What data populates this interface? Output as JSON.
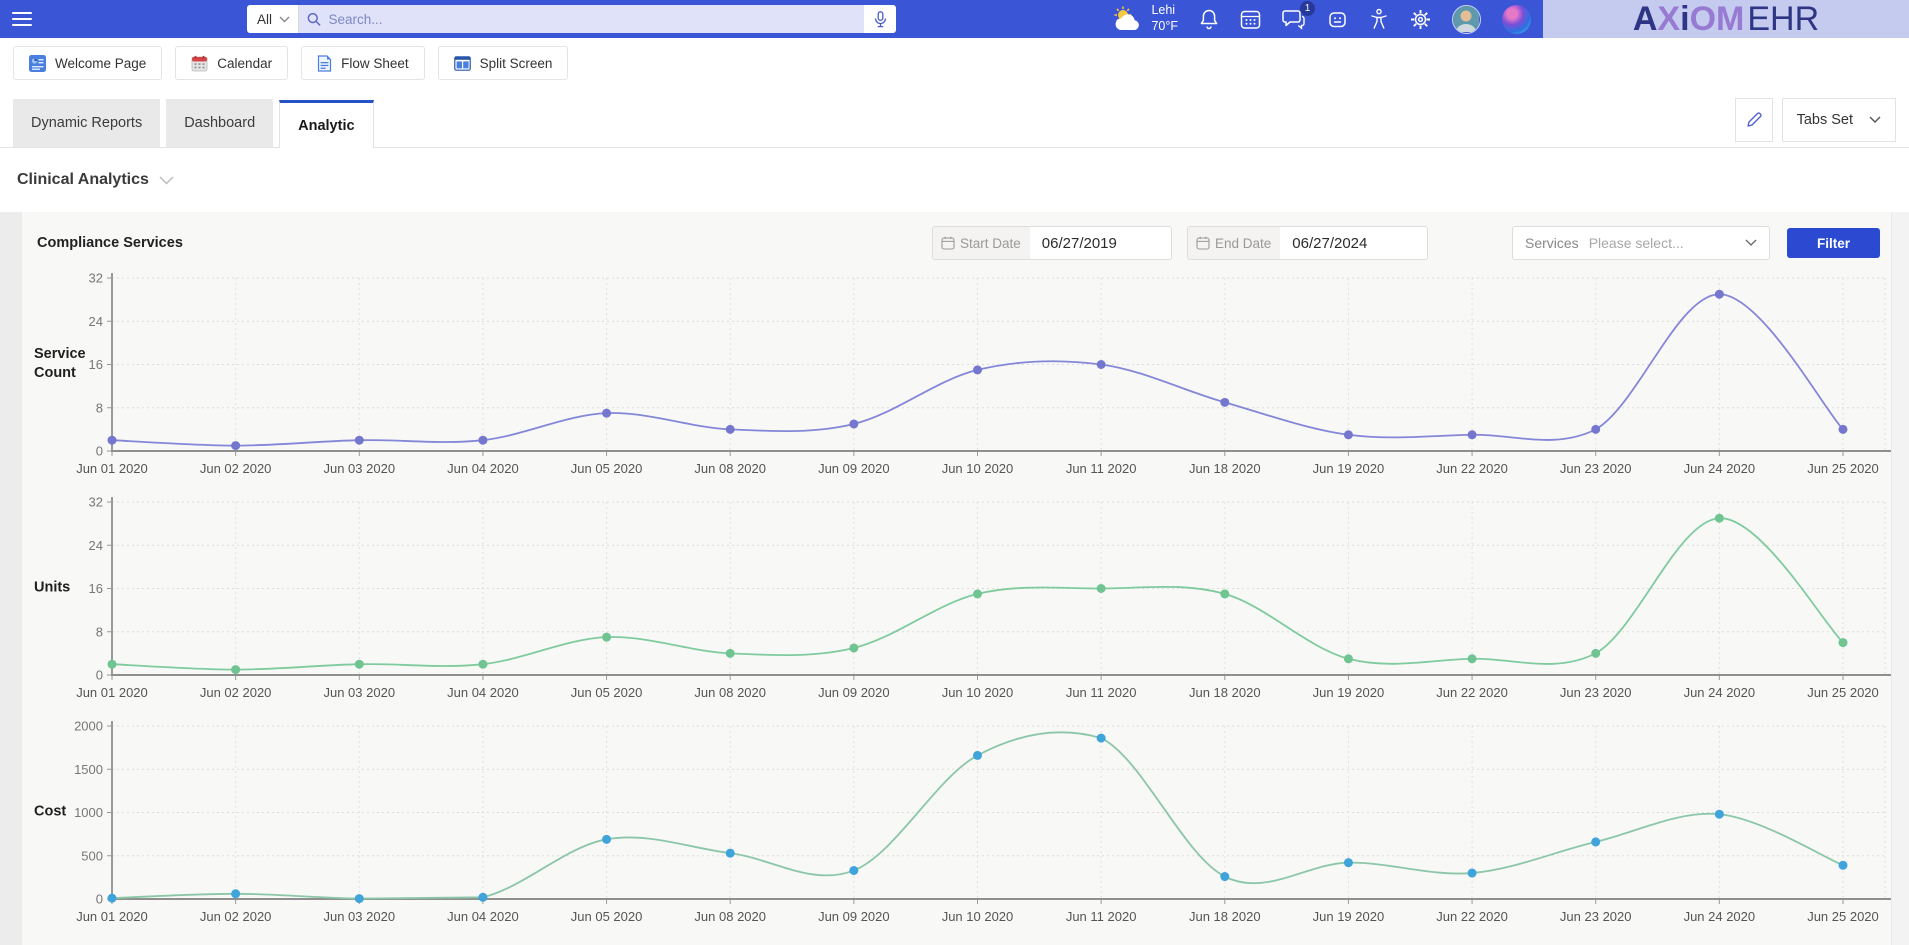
{
  "topbar": {
    "search_scope": "All",
    "search_placeholder": "Search...",
    "weather": {
      "city": "Lehi",
      "temp": "70°F"
    },
    "chat_badge": "1",
    "icon_names": [
      "hamburger-icon",
      "search-icon",
      "microphone-icon",
      "weather-icon",
      "bell-icon",
      "calendar-icon",
      "chat-icon",
      "bot-icon",
      "accessibility-icon",
      "gear-icon",
      "avatar",
      "assistant-orb"
    ],
    "logo": {
      "a": "A",
      "x": "X",
      "i": "i",
      "om": "OM",
      "ehr": "EHR"
    }
  },
  "quicklaunch": {
    "items": [
      {
        "label": "Welcome Page",
        "icon": "welcome-page-icon"
      },
      {
        "label": "Calendar",
        "icon": "calendar-icon"
      },
      {
        "label": "Flow Sheet",
        "icon": "flow-sheet-icon"
      },
      {
        "label": "Split Screen",
        "icon": "split-screen-icon"
      }
    ]
  },
  "tabs": {
    "items": [
      "Dynamic Reports",
      "Dashboard",
      "Analytic"
    ],
    "active": "Analytic",
    "tabs_set_label": "Tabs Set"
  },
  "page": {
    "section_title": "Clinical Analytics",
    "panel_title": "Compliance Services"
  },
  "filters": {
    "start_date": {
      "label": "Start Date",
      "value": "06/27/2019"
    },
    "end_date": {
      "label": "End Date",
      "value": "06/27/2024"
    },
    "services": {
      "label": "Services",
      "placeholder": "Please select..."
    },
    "filter_button": "Filter"
  },
  "chart_data": [
    {
      "type": "line",
      "title": "Service Count",
      "ylabel": "Service Count",
      "xlabel": "",
      "categories": [
        "Jun 01 2020",
        "Jun 02 2020",
        "Jun 03 2020",
        "Jun 04 2020",
        "Jun 05 2020",
        "Jun 08 2020",
        "Jun 09 2020",
        "Jun 10 2020",
        "Jun 11 2020",
        "Jun 18 2020",
        "Jun 19 2020",
        "Jun 22 2020",
        "Jun 23 2020",
        "Jun 24 2020",
        "Jun 25 2020"
      ],
      "values": [
        2,
        1,
        2,
        2,
        7,
        4,
        5,
        15,
        16,
        9,
        3,
        3,
        4,
        29,
        4
      ],
      "ylim": [
        0,
        32
      ],
      "yticks": [
        0,
        8,
        16,
        24,
        32
      ],
      "grid": true,
      "legend": "none",
      "line_color": "#8486d8",
      "marker_color": "#7577cf"
    },
    {
      "type": "line",
      "title": "Units",
      "ylabel": "Units",
      "xlabel": "",
      "categories": [
        "Jun 01 2020",
        "Jun 02 2020",
        "Jun 03 2020",
        "Jun 04 2020",
        "Jun 05 2020",
        "Jun 08 2020",
        "Jun 09 2020",
        "Jun 10 2020",
        "Jun 11 2020",
        "Jun 18 2020",
        "Jun 19 2020",
        "Jun 22 2020",
        "Jun 23 2020",
        "Jun 24 2020",
        "Jun 25 2020"
      ],
      "values": [
        2,
        1,
        2,
        2,
        7,
        4,
        5,
        15,
        16,
        15,
        3,
        3,
        4,
        29,
        6
      ],
      "ylim": [
        0,
        32
      ],
      "yticks": [
        0,
        8,
        16,
        24,
        32
      ],
      "grid": true,
      "legend": "none",
      "line_color": "#7fcb9d",
      "marker_color": "#6fc492"
    },
    {
      "type": "line",
      "title": "Cost",
      "ylabel": "Cost",
      "xlabel": "",
      "categories": [
        "Jun 01 2020",
        "Jun 02 2020",
        "Jun 03 2020",
        "Jun 04 2020",
        "Jun 05 2020",
        "Jun 08 2020",
        "Jun 09 2020",
        "Jun 10 2020",
        "Jun 11 2020",
        "Jun 18 2020",
        "Jun 19 2020",
        "Jun 22 2020",
        "Jun 23 2020",
        "Jun 24 2020",
        "Jun 25 2020"
      ],
      "values": [
        10,
        60,
        5,
        20,
        690,
        530,
        330,
        1660,
        1860,
        260,
        420,
        300,
        660,
        980,
        390
      ],
      "ylim": [
        0,
        2000
      ],
      "yticks": [
        0,
        500,
        1000,
        1500,
        2000
      ],
      "grid": true,
      "legend": "none",
      "line_color": "#8cc6a8",
      "marker_color": "#3fa3dc"
    }
  ],
  "colors": {
    "topbar_bg": "#3a55d6",
    "logo_bg": "#c5caef",
    "logo_navy": "#2d3584",
    "logo_purple": "#977bd2",
    "active_tab_accent": "#2553c6",
    "filter_button_bg": "#2b4ad1",
    "panel_bg": "#f8f8f7"
  }
}
